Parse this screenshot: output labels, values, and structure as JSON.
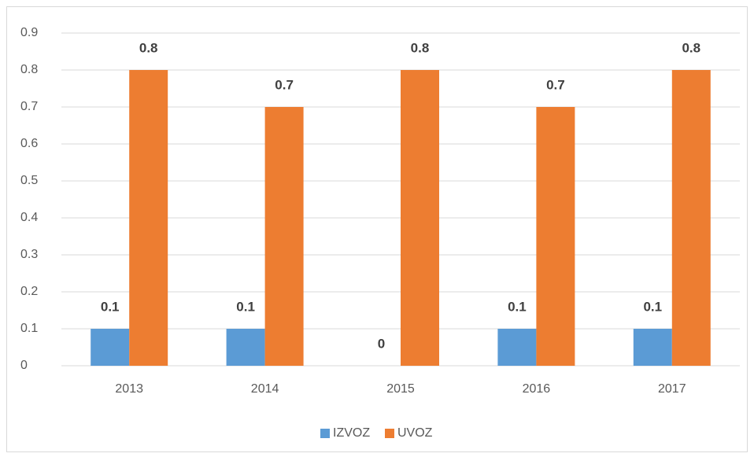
{
  "chart_data": {
    "type": "bar",
    "categories": [
      "2013",
      "2014",
      "2015",
      "2016",
      "2017"
    ],
    "series": [
      {
        "name": "IZVOZ",
        "color": "#5b9bd5",
        "values": [
          0.1,
          0.1,
          0,
          0.1,
          0.1
        ]
      },
      {
        "name": "UVOZ",
        "color": "#ed7d31",
        "values": [
          0.8,
          0.7,
          0.8,
          0.7,
          0.8
        ]
      }
    ],
    "ylim": [
      0,
      0.9
    ],
    "yticks": [
      0,
      0.1,
      0.2,
      0.3,
      0.4,
      0.5,
      0.6,
      0.7,
      0.8,
      0.9
    ],
    "grid": true,
    "legend": "bottom"
  }
}
